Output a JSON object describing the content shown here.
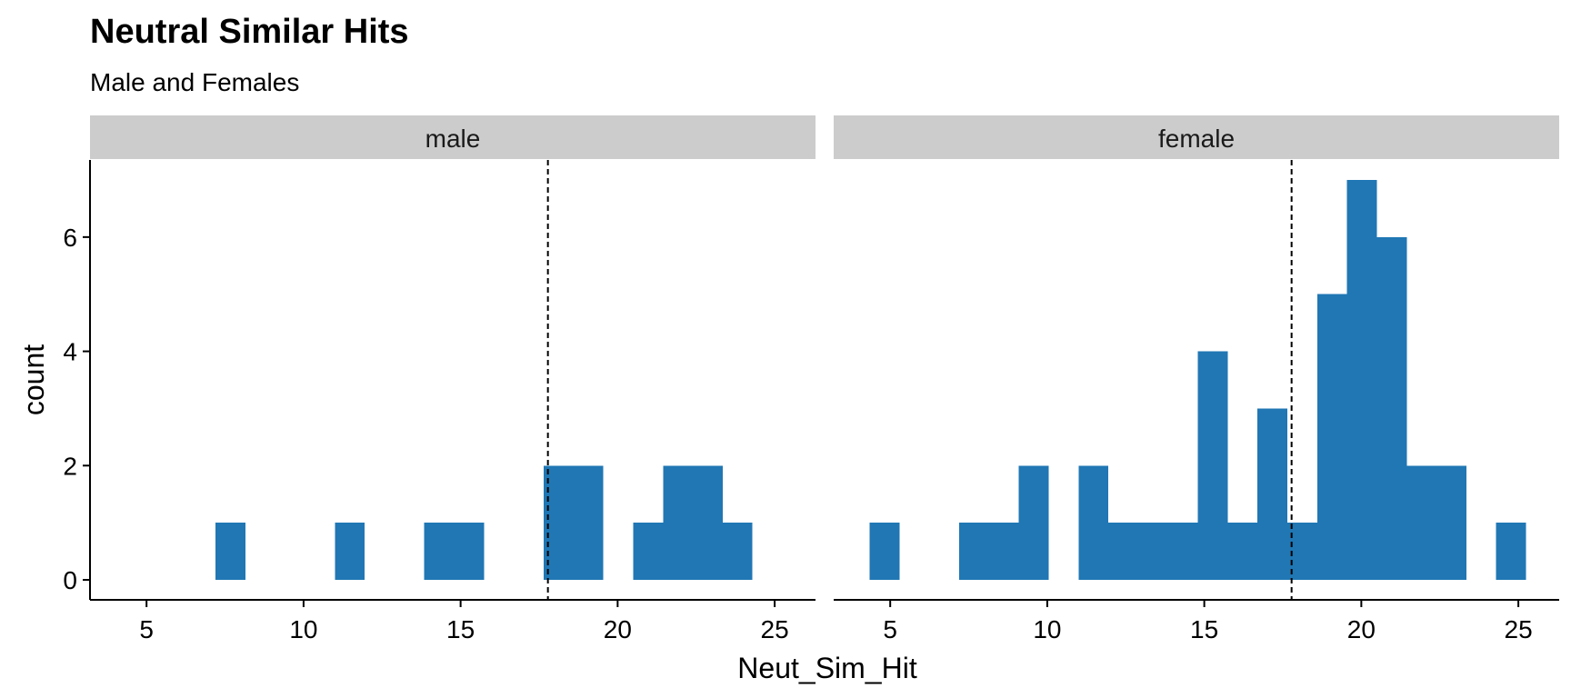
{
  "chart_data": {
    "type": "bar",
    "title": "Neutral Similar Hits",
    "subtitle": "Male and Females",
    "xlabel": "Neut_Sim_Hit",
    "ylabel": "count",
    "xlim": [
      3.2,
      26.3
    ],
    "ylim": [
      -0.35,
      7.35
    ],
    "x_ticks": [
      5,
      10,
      15,
      20,
      25
    ],
    "y_ticks": [
      0,
      2,
      4,
      6
    ],
    "bin_width": 0.95,
    "mean_line": 17.78,
    "bar_color": "#2077b4",
    "strip_color": "#cccccc",
    "panels": [
      {
        "name": "male",
        "bins": [
          {
            "x": 7.67,
            "count": 1
          },
          {
            "x": 11.47,
            "count": 1
          },
          {
            "x": 14.32,
            "count": 1
          },
          {
            "x": 15.27,
            "count": 1
          },
          {
            "x": 18.12,
            "count": 2
          },
          {
            "x": 19.07,
            "count": 2
          },
          {
            "x": 20.97,
            "count": 1
          },
          {
            "x": 21.92,
            "count": 2
          },
          {
            "x": 22.87,
            "count": 2
          },
          {
            "x": 23.82,
            "count": 1
          }
        ]
      },
      {
        "name": "female",
        "bins": [
          {
            "x": 4.82,
            "count": 1
          },
          {
            "x": 7.67,
            "count": 1
          },
          {
            "x": 8.62,
            "count": 1
          },
          {
            "x": 9.57,
            "count": 2
          },
          {
            "x": 11.47,
            "count": 2
          },
          {
            "x": 12.42,
            "count": 1
          },
          {
            "x": 13.37,
            "count": 1
          },
          {
            "x": 14.32,
            "count": 1
          },
          {
            "x": 15.27,
            "count": 4
          },
          {
            "x": 16.22,
            "count": 1
          },
          {
            "x": 17.17,
            "count": 3
          },
          {
            "x": 18.12,
            "count": 1
          },
          {
            "x": 19.07,
            "count": 5
          },
          {
            "x": 20.02,
            "count": 7
          },
          {
            "x": 20.97,
            "count": 6
          },
          {
            "x": 21.92,
            "count": 2
          },
          {
            "x": 22.87,
            "count": 2
          },
          {
            "x": 24.77,
            "count": 1
          }
        ]
      }
    ]
  }
}
